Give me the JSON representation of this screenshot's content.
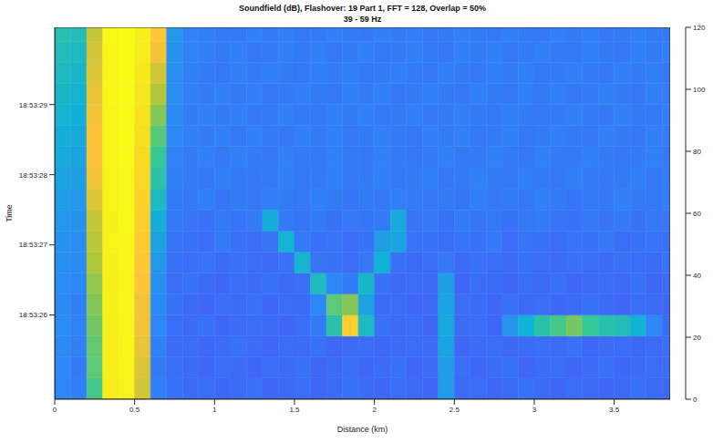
{
  "chart_data": {
    "type": "heatmap",
    "title": "Soundfield (dB), Flashover: 19 Part 1, FFT = 128, Overlap = 50%",
    "subtitle": "39 - 59 Hz",
    "x_label": "Distance (km)",
    "y_label": "Time",
    "xlim": [
      0,
      3.85
    ],
    "xticks": [
      0,
      0.5,
      1,
      1.5,
      2,
      2.5,
      3,
      3.5
    ],
    "ylim": [
      24.8,
      30.1
    ],
    "yticks": [
      {
        "value": 26,
        "label": "18:53:26"
      },
      {
        "value": 27,
        "label": "18:53:27"
      },
      {
        "value": 28,
        "label": "18:53:28"
      },
      {
        "value": 29,
        "label": "18:53:29"
      }
    ],
    "colorbar_range": [
      0,
      120
    ],
    "colorbar_ticks": [
      0,
      20,
      40,
      60,
      80,
      100,
      120
    ],
    "x_edges": [
      0,
      0.1,
      0.2,
      0.3,
      0.4,
      0.5,
      0.6,
      0.7,
      0.8,
      0.9,
      1.0,
      1.1,
      1.2,
      1.3,
      1.4,
      1.5,
      1.6,
      1.7,
      1.8,
      1.9,
      2.0,
      2.1,
      2.2,
      2.3,
      2.4,
      2.5,
      2.6,
      2.7,
      2.8,
      2.9,
      3.0,
      3.1,
      3.2,
      3.3,
      3.4,
      3.5,
      3.6,
      3.7,
      3.8,
      3.85
    ],
    "y_edges": [
      24.8,
      25.1,
      25.4,
      25.7,
      26.0,
      26.3,
      26.6,
      26.9,
      27.2,
      27.5,
      27.8,
      28.1,
      28.4,
      28.7,
      29.0,
      29.3,
      29.6,
      29.9,
      30.1
    ],
    "cells": [
      [
        30,
        28,
        62,
        112,
        115,
        82,
        28,
        24,
        22,
        23,
        21,
        22,
        24,
        21,
        22,
        23,
        21,
        22,
        24,
        22,
        21,
        23,
        22,
        21,
        38,
        22,
        23,
        21,
        22,
        24,
        22,
        21,
        23,
        22,
        21,
        22,
        24,
        22,
        21
      ],
      [
        30,
        27,
        65,
        113,
        116,
        84,
        27,
        23,
        22,
        21,
        23,
        22,
        21,
        23,
        22,
        24,
        21,
        22,
        23,
        21,
        22,
        24,
        21,
        22,
        38,
        23,
        21,
        22,
        24,
        21,
        22,
        23,
        21,
        22,
        24,
        21,
        22,
        23,
        22
      ],
      [
        31,
        28,
        66,
        112,
        117,
        86,
        28,
        22,
        23,
        21,
        22,
        24,
        22,
        21,
        23,
        22,
        24,
        21,
        22,
        23,
        21,
        22,
        23,
        22,
        40,
        21,
        22,
        23,
        21,
        22,
        23,
        22,
        24,
        21,
        22,
        23,
        21,
        22,
        23
      ],
      [
        32,
        29,
        68,
        113,
        116,
        88,
        30,
        23,
        22,
        24,
        21,
        22,
        23,
        22,
        21,
        23,
        27,
        55,
        95,
        50,
        24,
        22,
        23,
        21,
        42,
        22,
        23,
        21,
        35,
        45,
        55,
        62,
        68,
        60,
        55,
        52,
        45,
        30,
        22
      ],
      [
        31,
        28,
        70,
        114,
        117,
        88,
        31,
        24,
        22,
        21,
        23,
        22,
        24,
        21,
        23,
        22,
        30,
        65,
        70,
        40,
        22,
        23,
        21,
        22,
        40,
        23,
        22,
        21,
        24,
        22,
        23,
        21,
        22,
        24,
        22,
        21,
        23,
        22,
        21
      ],
      [
        32,
        30,
        72,
        113,
        116,
        90,
        33,
        23,
        24,
        22,
        21,
        23,
        22,
        24,
        22,
        23,
        50,
        30,
        27,
        48,
        24,
        22,
        23,
        22,
        39,
        21,
        23,
        22,
        21,
        23,
        22,
        24,
        21,
        22,
        23,
        22,
        24,
        21,
        22
      ],
      [
        33,
        31,
        75,
        114,
        117,
        92,
        36,
        24,
        23,
        25,
        22,
        24,
        23,
        22,
        24,
        47,
        25,
        24,
        23,
        26,
        45,
        24,
        22,
        23,
        26,
        22,
        24,
        23,
        22,
        24,
        23,
        22,
        24,
        23,
        22,
        24,
        23,
        22,
        24
      ],
      [
        34,
        32,
        78,
        115,
        117,
        94,
        40,
        25,
        24,
        23,
        26,
        24,
        23,
        25,
        46,
        26,
        24,
        25,
        23,
        24,
        38,
        40,
        25,
        24,
        23,
        25,
        24,
        26,
        23,
        25,
        24,
        23,
        25,
        24,
        26,
        23,
        24,
        25,
        23
      ],
      [
        36,
        34,
        80,
        114,
        118,
        96,
        44,
        26,
        25,
        24,
        26,
        25,
        27,
        44,
        26,
        25,
        27,
        24,
        26,
        25,
        27,
        42,
        25,
        26,
        24,
        27,
        25,
        26,
        24,
        26,
        27,
        25,
        24,
        26,
        25,
        27,
        24,
        26,
        25
      ],
      [
        38,
        36,
        84,
        115,
        118,
        98,
        50,
        27,
        26,
        28,
        25,
        27,
        26,
        28,
        27,
        26,
        28,
        27,
        25,
        27,
        26,
        28,
        27,
        26,
        27,
        25,
        28,
        26,
        27,
        26,
        28,
        27,
        25,
        27,
        26,
        28,
        27,
        26,
        27
      ],
      [
        40,
        38,
        88,
        115,
        118,
        100,
        56,
        28,
        27,
        26,
        28,
        27,
        26,
        27,
        28,
        26,
        27,
        28,
        26,
        27,
        28,
        26,
        27,
        28,
        26,
        27,
        28,
        27,
        26,
        28,
        27,
        26,
        28,
        27,
        26,
        27,
        28,
        26,
        27
      ],
      [
        42,
        40,
        90,
        116,
        119,
        102,
        60,
        29,
        27,
        28,
        26,
        28,
        27,
        26,
        28,
        27,
        26,
        28,
        27,
        26,
        28,
        27,
        26,
        27,
        28,
        26,
        27,
        28,
        27,
        26,
        28,
        27,
        26,
        28,
        27,
        26,
        27,
        28,
        26
      ],
      [
        44,
        42,
        90,
        116,
        119,
        104,
        64,
        30,
        28,
        27,
        28,
        26,
        28,
        27,
        26,
        28,
        27,
        28,
        26,
        27,
        28,
        27,
        26,
        28,
        27,
        28,
        26,
        27,
        28,
        26,
        27,
        28,
        27,
        26,
        28,
        27,
        26,
        28,
        27
      ],
      [
        46,
        44,
        88,
        116,
        119,
        106,
        70,
        31,
        27,
        28,
        27,
        28,
        26,
        27,
        28,
        27,
        26,
        28,
        27,
        28,
        26,
        27,
        28,
        26,
        27,
        28,
        27,
        26,
        28,
        27,
        26,
        27,
        28,
        27,
        26,
        28,
        27,
        26,
        28
      ],
      [
        48,
        46,
        86,
        117,
        119,
        108,
        76,
        32,
        28,
        27,
        28,
        27,
        28,
        26,
        27,
        28,
        27,
        26,
        28,
        27,
        28,
        26,
        27,
        28,
        27,
        26,
        28,
        27,
        26,
        28,
        27,
        28,
        26,
        27,
        28,
        27,
        26,
        28,
        27
      ],
      [
        50,
        48,
        84,
        117,
        120,
        110,
        82,
        33,
        28,
        27,
        26,
        28,
        27,
        28,
        27,
        26,
        28,
        27,
        28,
        26,
        27,
        28,
        27,
        26,
        28,
        27,
        26,
        28,
        27,
        28,
        26,
        27,
        28,
        27,
        26,
        28,
        27,
        28,
        26
      ],
      [
        52,
        50,
        82,
        117,
        120,
        112,
        88,
        34,
        29,
        28,
        27,
        28,
        26,
        27,
        28,
        27,
        28,
        26,
        27,
        28,
        26,
        27,
        28,
        27,
        26,
        28,
        27,
        28,
        26,
        27,
        28,
        27,
        26,
        28,
        27,
        26,
        28,
        27,
        28
      ],
      [
        54,
        52,
        80,
        118,
        120,
        113,
        92,
        36,
        29,
        28,
        27,
        26,
        28,
        27,
        28,
        26,
        27,
        28,
        27,
        26,
        28,
        27,
        28,
        26,
        27,
        28,
        27,
        26,
        28,
        27,
        26,
        28,
        27,
        28,
        26,
        27,
        28,
        27,
        26
      ]
    ]
  }
}
